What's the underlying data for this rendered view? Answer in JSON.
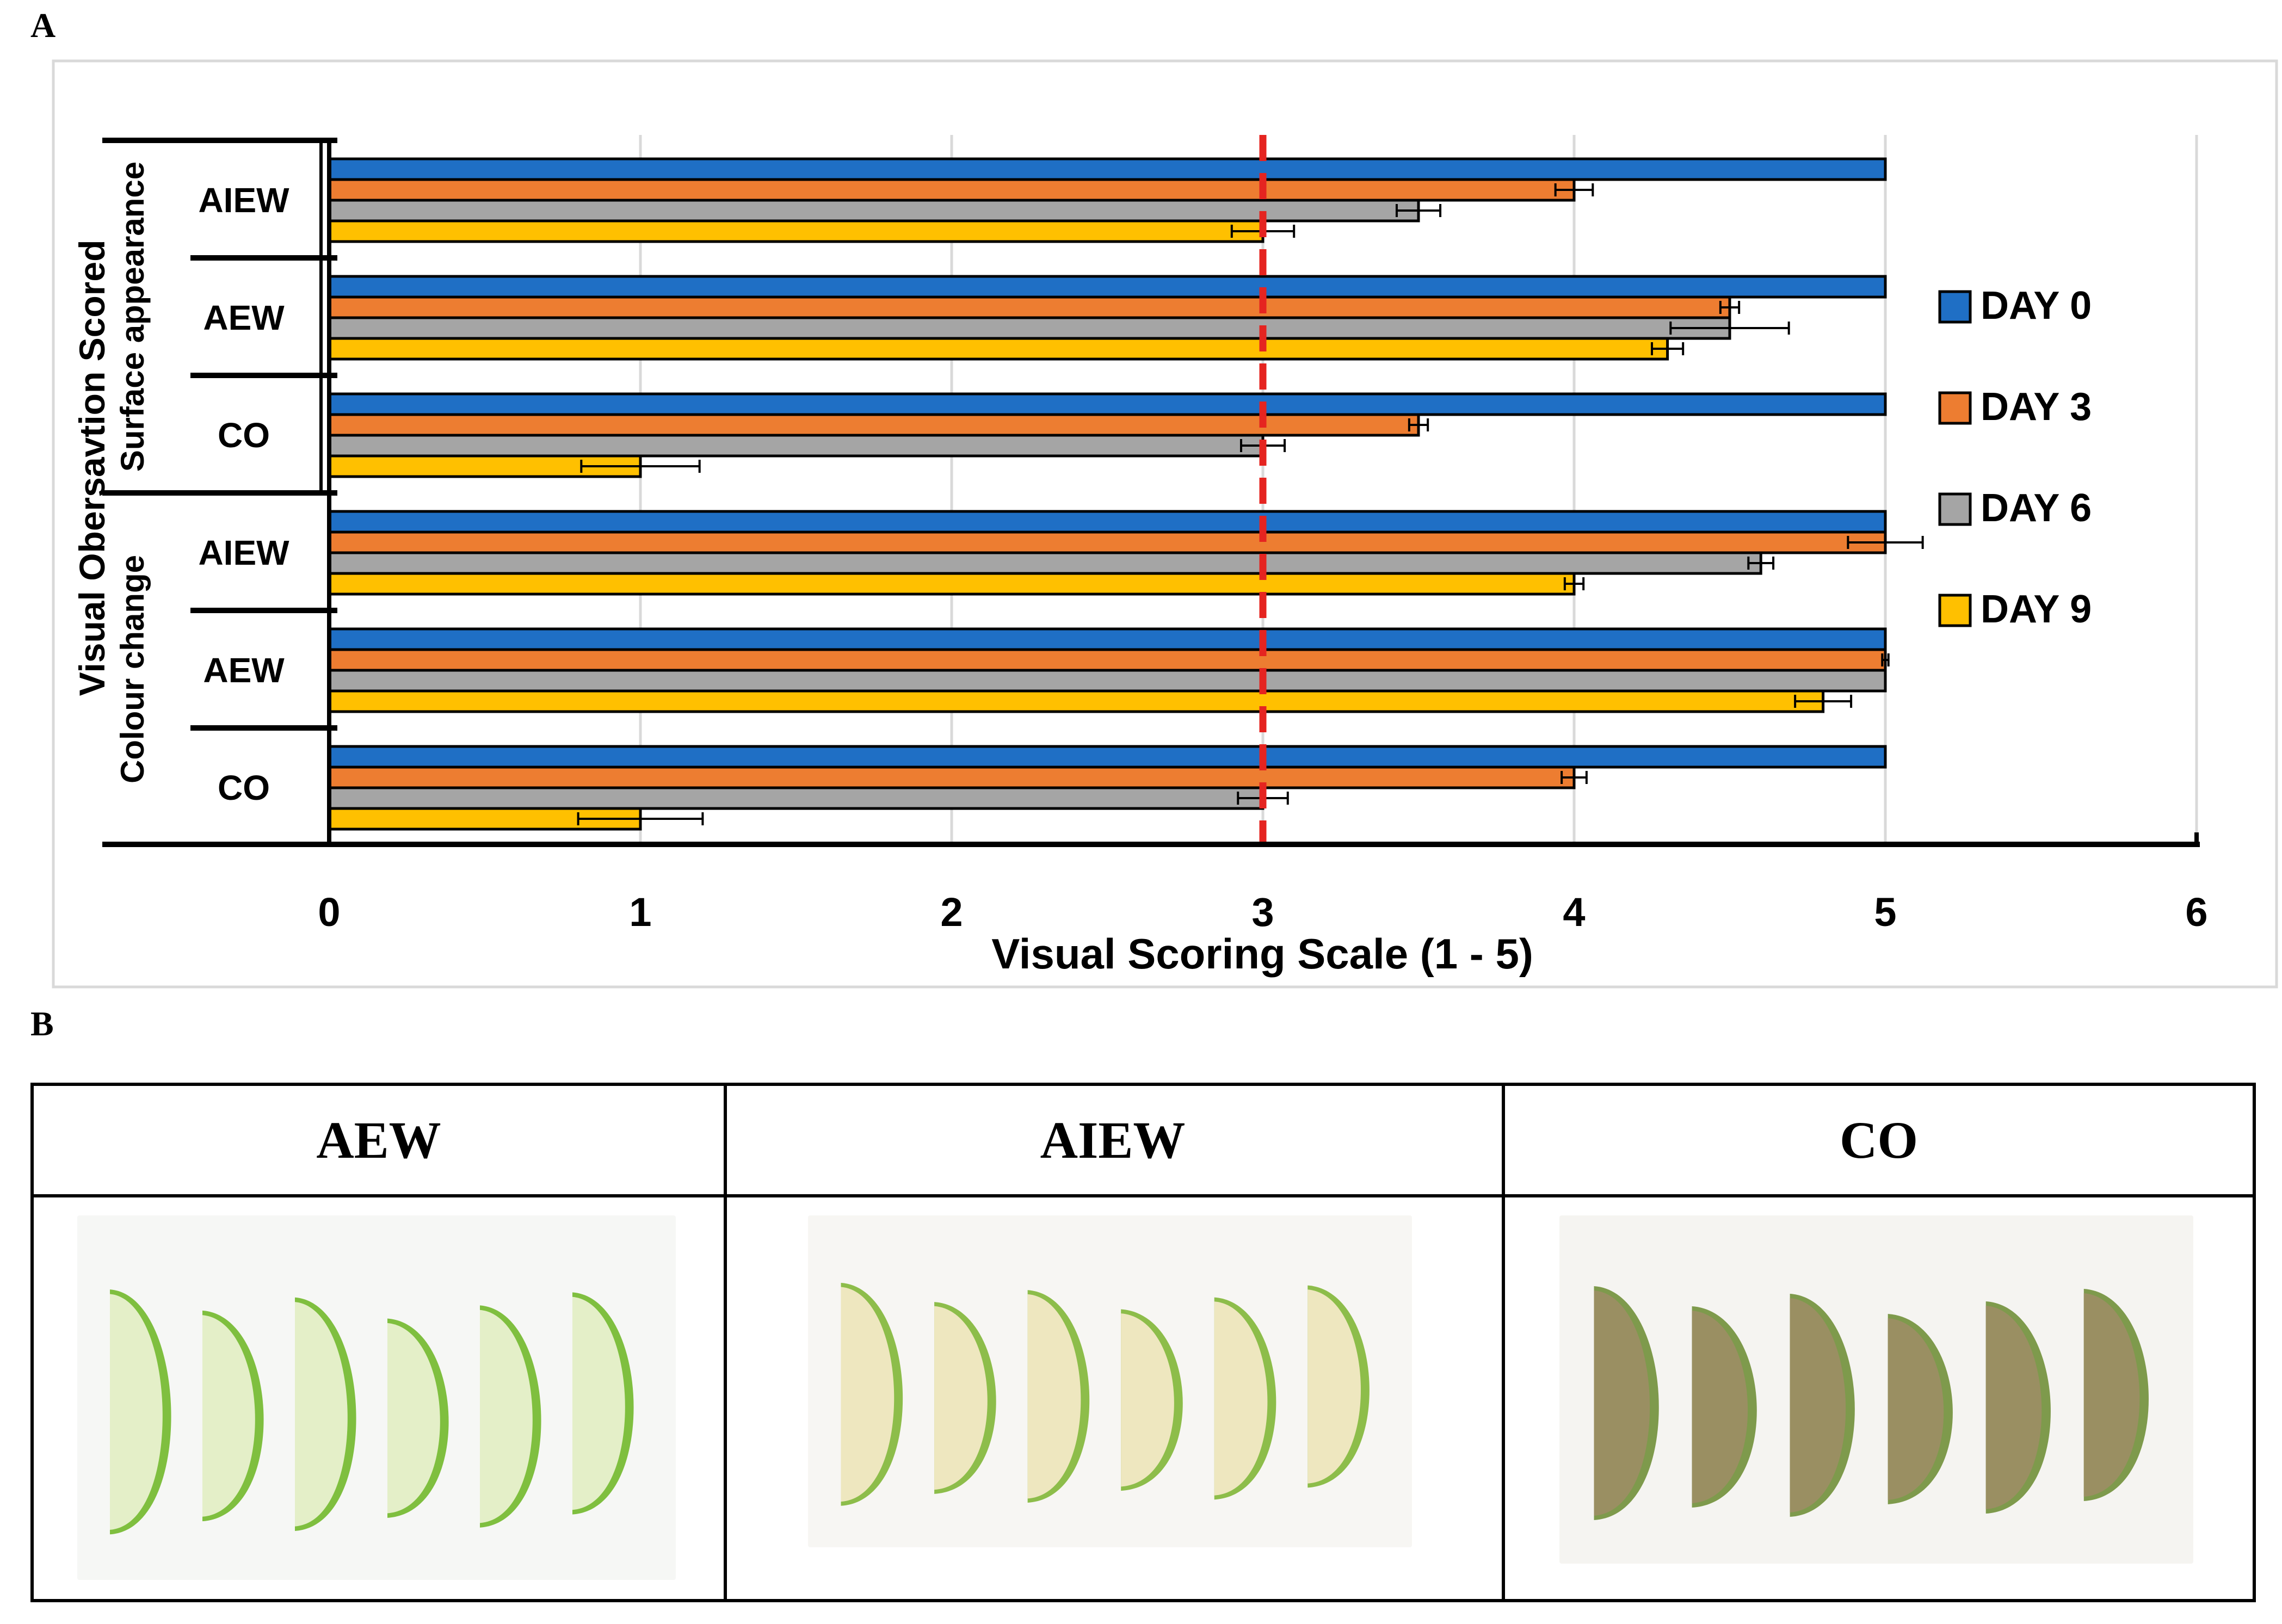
{
  "panel_a_label": "A",
  "panel_b_label": "B",
  "chart_data": {
    "type": "bar",
    "orientation": "horizontal",
    "groups": [
      "Surface appearance",
      "Colour change"
    ],
    "y_axis_title_line1": "Visual Obersavtion Scored",
    "categories": [
      {
        "group": "Surface appearance",
        "label": "AIEW"
      },
      {
        "group": "Surface appearance",
        "label": "AEW"
      },
      {
        "group": "Surface appearance",
        "label": "CO"
      },
      {
        "group": "Colour change",
        "label": "AIEW"
      },
      {
        "group": "Colour change",
        "label": "AEW"
      },
      {
        "group": "Colour change",
        "label": "CO"
      }
    ],
    "series": [
      {
        "name": "DAY 0",
        "color": "#1f6fc5",
        "values": [
          5,
          5,
          5,
          5,
          5,
          5
        ],
        "errors": [
          0,
          0,
          0,
          0,
          0,
          0
        ]
      },
      {
        "name": "DAY 3",
        "color": "#ed7d31",
        "values": [
          4.0,
          4.5,
          3.5,
          5.0,
          5.0,
          4.0
        ],
        "errors": [
          0.06,
          0.03,
          0.03,
          0.12,
          0.01,
          0.04
        ]
      },
      {
        "name": "DAY 6",
        "color": "#a5a5a5",
        "values": [
          3.5,
          4.5,
          3.0,
          4.6,
          5.0,
          3.0
        ],
        "errors": [
          0.07,
          0.19,
          0.07,
          0.04,
          0.0,
          0.08
        ]
      },
      {
        "name": "DAY 9",
        "color": "#ffc000",
        "values": [
          3.0,
          4.3,
          1.0,
          4.0,
          4.8,
          1.0
        ],
        "errors": [
          0.1,
          0.05,
          0.19,
          0.03,
          0.09,
          0.2
        ]
      }
    ],
    "xlim": [
      0,
      6
    ],
    "xticks": [
      "0",
      "1",
      "2",
      "3",
      "4",
      "5",
      "6"
    ],
    "xlabel": "Visual Scoring Scale (1 - 5)",
    "threshold_line": 3,
    "threshold_color": "#e52420",
    "legend_position": "right"
  },
  "table": {
    "headers": [
      "AEW",
      "AIEW",
      "CO"
    ]
  },
  "photos": [
    {
      "name": "AEW",
      "description_colors": {
        "bg": "#f6f7f5",
        "flesh": "#e4efc8",
        "skin": "#7fbf3f"
      }
    },
    {
      "name": "AIEW",
      "description_colors": {
        "bg": "#f7f6f3",
        "flesh": "#eee7bf",
        "skin": "#8dbd4a"
      }
    },
    {
      "name": "CO",
      "description_colors": {
        "bg": "#f5f4f1",
        "flesh": "#9a8f62",
        "skin": "#7e9a4c"
      }
    }
  ]
}
